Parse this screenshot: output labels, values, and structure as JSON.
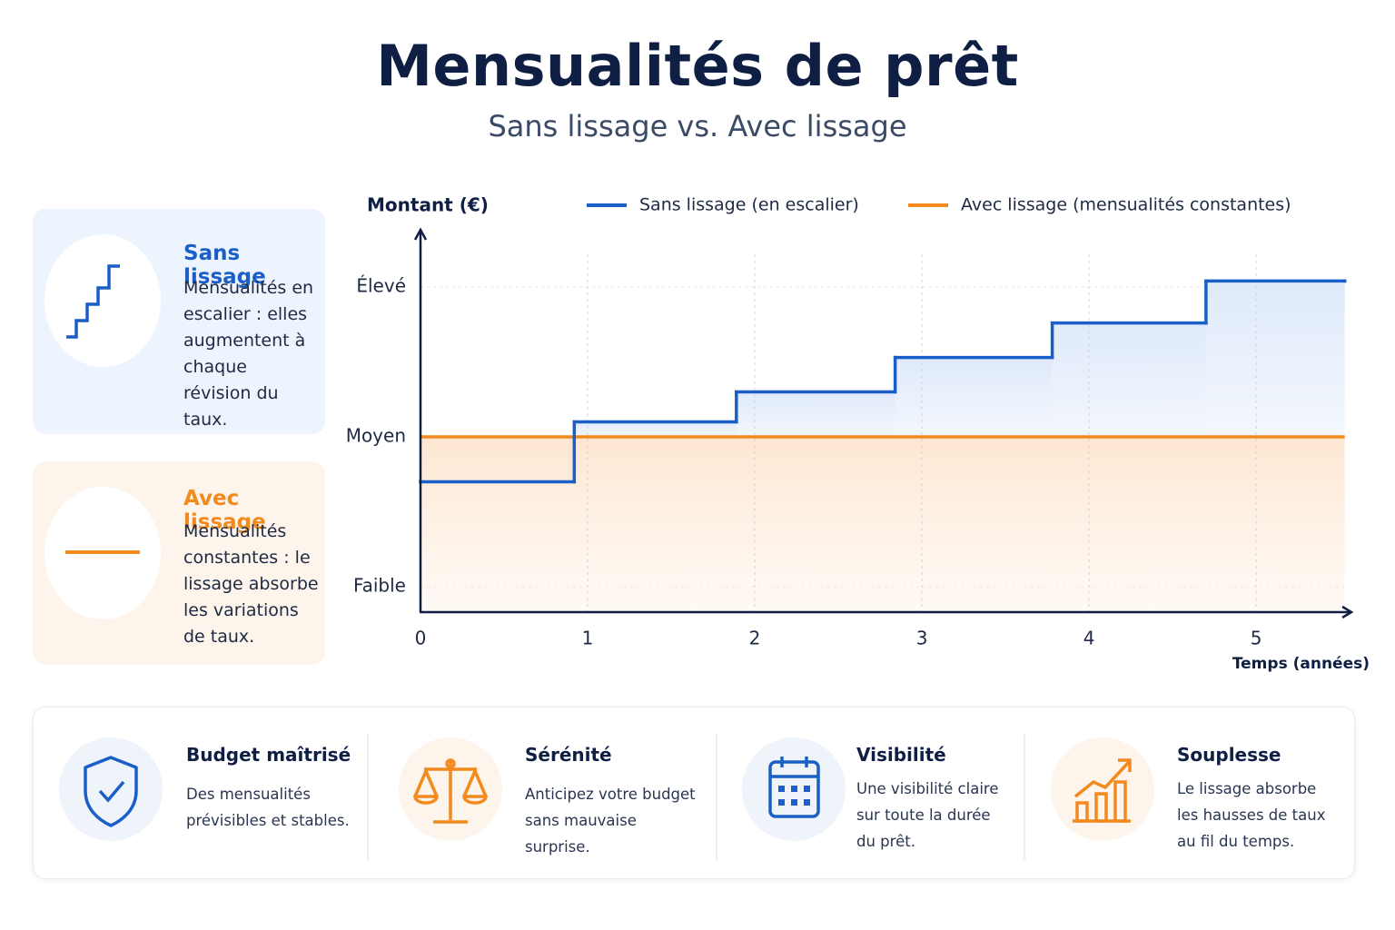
{
  "header": {
    "title": "Mensualités de prêt",
    "subtitle": "Sans lissage vs. Avec lissage"
  },
  "cards": [
    {
      "title": "Sans lissage",
      "text": "Mensualités en escalier : elles augmentent à chaque révision du taux."
    },
    {
      "title": "Avec lissage",
      "text": "Mensualités constantes : le lissage absorbe les variations de taux."
    }
  ],
  "chart_data": {
    "type": "line",
    "y_label": "Montant (€)",
    "x_label": "Temps (années)",
    "xlim": [
      0,
      5.57
    ],
    "xticks": [
      0,
      1,
      2,
      3,
      4,
      5
    ],
    "ylim": [
      0.83,
      3.37
    ],
    "yticks": [
      {
        "value": 1,
        "label": "Faible"
      },
      {
        "value": 2,
        "label": "Moyen"
      },
      {
        "value": 3,
        "label": "Élevé"
      }
    ],
    "grid": true,
    "series": [
      {
        "name": "Sans lissage (en escalier)",
        "color": "#1a5fc8",
        "style": "step",
        "x": [
          0,
          0.92,
          1.89,
          2.84,
          3.78,
          4.7,
          5.53
        ],
        "values": [
          1.7,
          2.1,
          2.3,
          2.53,
          2.76,
          3.04,
          3.04
        ]
      },
      {
        "name": "Avec lissage (mensualités constantes)",
        "color": "#f28a1e",
        "style": "line",
        "x": [
          0,
          5.53
        ],
        "values": [
          2,
          2
        ]
      }
    ]
  },
  "features": [
    {
      "title": "Budget maîtrisé",
      "text": "Des mensualités prévisibles et stables."
    },
    {
      "title": "Sérénité",
      "text": "Anticipez votre budget sans mauvaise surprise."
    },
    {
      "title": "Visibilité",
      "text": "Une visibilité claire sur toute la durée du prêt."
    },
    {
      "title": "Souplesse",
      "text": "Le lissage absorbe les hausses de taux au fil du temps."
    }
  ]
}
